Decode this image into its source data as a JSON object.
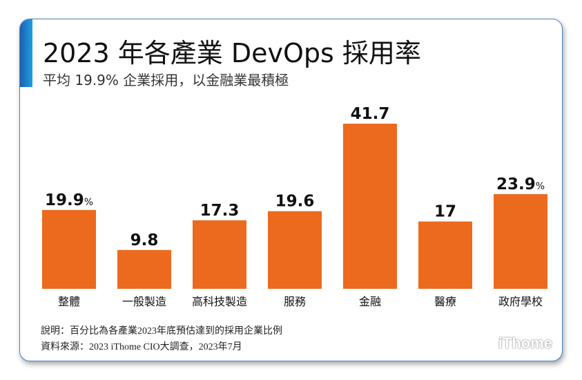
{
  "title": "2023 年各產業 DevOps 採用率",
  "subtitle": "平均 19.9% 企業採用，以金融業最積極",
  "colors": {
    "bar": "#EC6A1E",
    "accent": "#1a7fd0",
    "border": "#4a7fc0"
  },
  "chart_data": {
    "type": "bar",
    "title": "2023 年各產業 DevOps 採用率",
    "categories": [
      "整體",
      "一般製造",
      "高科技製造",
      "服務",
      "金融",
      "醫療",
      "政府學校"
    ],
    "values": [
      19.9,
      9.8,
      17.3,
      19.6,
      41.7,
      17,
      23.9
    ],
    "data_labels": [
      "19.9",
      "9.8",
      "17.3",
      "19.6",
      "41.7",
      "17",
      "23.9"
    ],
    "label_units": [
      "%",
      "",
      "",
      "",
      "",
      "",
      "%"
    ],
    "ylim": [
      0,
      41.7
    ],
    "grid": false,
    "legend": "none"
  },
  "footer": {
    "note": "說明：百分比為各產業2023年底預估達到的採用企業比例",
    "source": "資料來源：2023 iThome CIO大調查，2023年7月",
    "logo": "iThome"
  }
}
